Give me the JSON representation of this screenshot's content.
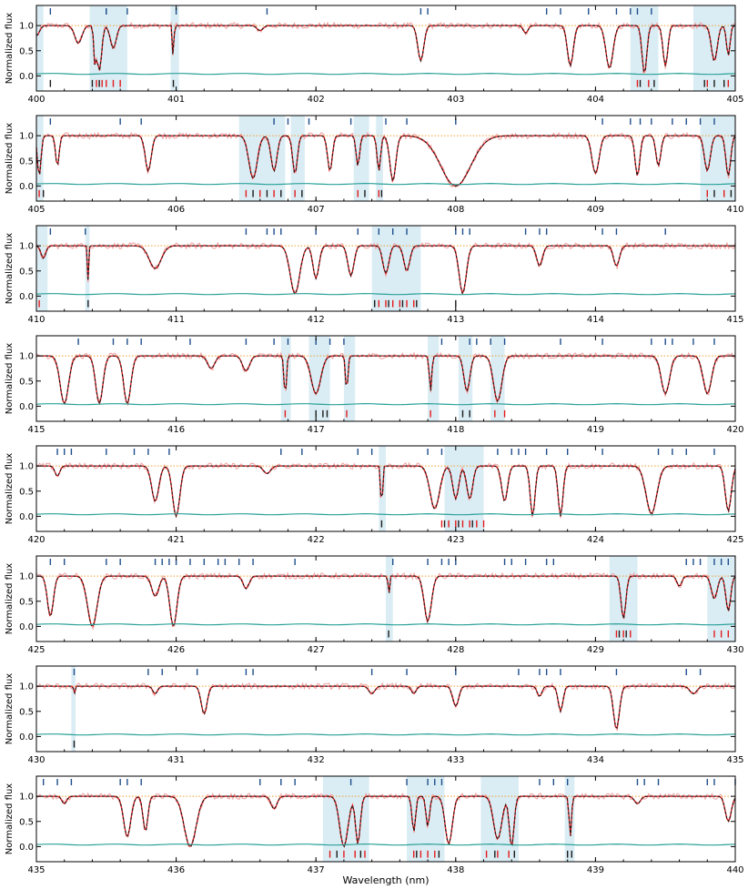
{
  "figure": {
    "xlabel": "Wavelength (nm)",
    "ylabel": "Normalized flux"
  },
  "colors": {
    "observed": "#f0a0a0",
    "model_red": "#e31a1c",
    "model_black": "#1a1a1a",
    "continuum": "#f0a030",
    "error": "#2aa198",
    "tick_blue": "#1f4e8c",
    "shade": "#add8e6"
  },
  "chart_data": [
    {
      "type": "line",
      "panel": 1,
      "xlim": [
        400,
        405
      ],
      "ylim": [
        -0.3,
        1.4
      ],
      "xticks": [
        "400",
        "401",
        "402",
        "403",
        "404",
        "405"
      ],
      "yticks": [
        "0.0",
        "0.5",
        "1.0"
      ],
      "shaded": [
        [
          400.0,
          400.05
        ],
        [
          400.38,
          400.65
        ],
        [
          400.96,
          401.02
        ],
        [
          404.25,
          404.45
        ],
        [
          404.7,
          405.0
        ]
      ],
      "lines": [
        [
          400.0,
          0.8,
          0.05
        ],
        [
          400.3,
          0.65,
          0.06
        ],
        [
          400.42,
          0.2,
          0.02
        ],
        [
          400.45,
          0.1,
          0.04
        ],
        [
          400.55,
          0.55,
          0.05
        ],
        [
          400.98,
          0.15,
          0.01
        ],
        [
          401.6,
          0.9,
          0.05
        ],
        [
          402.75,
          0.3,
          0.05
        ],
        [
          403.5,
          0.85,
          0.04
        ],
        [
          403.82,
          0.2,
          0.05
        ],
        [
          404.1,
          0.15,
          0.06
        ],
        [
          404.35,
          0.05,
          0.04
        ],
        [
          404.5,
          0.2,
          0.04
        ],
        [
          404.85,
          0.3,
          0.05
        ],
        [
          404.95,
          0.4,
          0.03
        ]
      ],
      "black_ticks_top": [
        400.1,
        400.5,
        400.5,
        400.65,
        401.0,
        401.65,
        402.75,
        402.8,
        403.65,
        403.75,
        403.95,
        404.15,
        404.25,
        404.3,
        404.4
      ],
      "red_ticks": [
        400.43,
        400.47,
        400.5,
        400.55,
        400.6,
        404.3,
        404.38,
        404.8,
        404.95
      ],
      "black_ticks": [
        400.1,
        400.4,
        400.45,
        400.98,
        404.32,
        404.42,
        404.78,
        404.85,
        404.92
      ]
    },
    {
      "type": "line",
      "panel": 2,
      "xlim": [
        405,
        410
      ],
      "ylim": [
        -0.3,
        1.4
      ],
      "xticks": [
        "405",
        "406",
        "407",
        "408",
        "409",
        "410"
      ],
      "yticks": [
        "0.0",
        "0.5",
        "1.0"
      ],
      "shaded": [
        [
          405.0,
          405.05
        ],
        [
          406.45,
          406.78
        ],
        [
          406.82,
          406.92
        ],
        [
          407.27,
          407.38
        ],
        [
          407.43,
          407.48
        ],
        [
          409.75,
          410.0
        ]
      ],
      "lines": [
        [
          405.02,
          0.2,
          0.03
        ],
        [
          405.15,
          0.4,
          0.03
        ],
        [
          405.8,
          0.3,
          0.05
        ],
        [
          406.55,
          0.15,
          0.07
        ],
        [
          406.7,
          0.3,
          0.05
        ],
        [
          406.85,
          0.25,
          0.04
        ],
        [
          407.1,
          0.3,
          0.04
        ],
        [
          407.3,
          0.4,
          0.03
        ],
        [
          407.45,
          0.3,
          0.03
        ],
        [
          407.55,
          0.1,
          0.05
        ],
        [
          408.0,
          0.0,
          0.25
        ],
        [
          409.0,
          0.25,
          0.06
        ],
        [
          409.3,
          0.2,
          0.04
        ],
        [
          409.45,
          0.4,
          0.04
        ],
        [
          409.8,
          0.3,
          0.05
        ],
        [
          409.95,
          0.2,
          0.04
        ]
      ],
      "black_ticks_top": [
        405.1,
        405.6,
        405.75,
        406.7,
        406.8,
        406.95,
        407.25,
        407.5,
        407.65,
        408.0,
        409.05,
        409.55,
        409.25,
        409.32,
        409.4,
        409.65,
        409.75,
        409.85
      ],
      "red_ticks": [
        405.02,
        406.5,
        406.6,
        406.7,
        406.85,
        407.3,
        407.45,
        409.8,
        409.92
      ],
      "black_ticks": [
        405.05,
        406.55,
        406.65,
        406.75,
        406.9,
        407.35,
        407.47,
        409.85,
        409.97
      ]
    },
    {
      "type": "line",
      "panel": 3,
      "xlim": [
        410,
        415
      ],
      "ylim": [
        -0.3,
        1.4
      ],
      "xticks": [
        "410",
        "411",
        "412",
        "413",
        "414",
        "415"
      ],
      "yticks": [
        "0.0",
        "0.5",
        "1.0"
      ],
      "shaded": [
        [
          410.0,
          410.08
        ],
        [
          410.35,
          410.38
        ],
        [
          412.4,
          412.75
        ]
      ],
      "lines": [
        [
          410.05,
          0.75,
          0.04
        ],
        [
          410.37,
          0.3,
          0.01
        ],
        [
          410.85,
          0.55,
          0.1
        ],
        [
          411.85,
          0.05,
          0.08
        ],
        [
          412.0,
          0.35,
          0.05
        ],
        [
          412.25,
          0.4,
          0.05
        ],
        [
          412.5,
          0.45,
          0.05
        ],
        [
          412.65,
          0.5,
          0.05
        ],
        [
          413.05,
          0.05,
          0.06
        ],
        [
          413.6,
          0.6,
          0.05
        ],
        [
          414.15,
          0.6,
          0.05
        ]
      ],
      "black_ticks_top": [
        410.1,
        410.35,
        411.5,
        411.65,
        411.7,
        411.75,
        412.0,
        412.3,
        412.45,
        412.55,
        412.65,
        413.0,
        413.05,
        413.1,
        413.5,
        413.6,
        413.65,
        414.05,
        414.15,
        414.5
      ],
      "red_ticks": [
        410.02,
        412.45,
        412.5,
        412.55,
        412.6,
        412.65,
        412.7
      ],
      "black_ticks": [
        410.37,
        412.42,
        412.52,
        412.62,
        412.72,
        413.0
      ]
    },
    {
      "type": "line",
      "panel": 4,
      "xlim": [
        415,
        420
      ],
      "ylim": [
        -0.3,
        1.4
      ],
      "xticks": [
        "415",
        "416",
        "417",
        "418",
        "419",
        "420"
      ],
      "yticks": [
        "0.0",
        "0.5",
        "1.0"
      ],
      "shaded": [
        [
          416.75,
          416.82
        ],
        [
          416.95,
          417.1
        ],
        [
          417.2,
          417.28
        ],
        [
          417.8,
          417.88
        ],
        [
          418.02,
          418.12
        ],
        [
          418.25,
          418.35
        ]
      ],
      "lines": [
        [
          415.2,
          0.05,
          0.07
        ],
        [
          415.45,
          0.05,
          0.06
        ],
        [
          415.65,
          0.05,
          0.06
        ],
        [
          416.25,
          0.75,
          0.06
        ],
        [
          416.5,
          0.7,
          0.06
        ],
        [
          416.78,
          0.2,
          0.02
        ],
        [
          417.0,
          0.25,
          0.08
        ],
        [
          417.22,
          0.3,
          0.02
        ],
        [
          417.82,
          0.3,
          0.02
        ],
        [
          418.08,
          0.3,
          0.05
        ],
        [
          418.3,
          0.1,
          0.07
        ],
        [
          419.5,
          0.25,
          0.07
        ],
        [
          419.8,
          0.25,
          0.07
        ]
      ],
      "black_ticks_top": [
        415.3,
        415.55,
        415.65,
        415.75,
        416.1,
        416.5,
        416.7,
        416.8,
        417.0,
        417.1,
        417.2,
        417.9,
        418.1,
        418.15,
        418.25,
        418.35,
        418.75,
        419.05,
        419.4,
        419.5,
        419.55,
        419.7,
        419.85
      ],
      "red_ticks": [
        416.78,
        417.22,
        417.82,
        418.28,
        418.35
      ],
      "black_ticks": [
        417.0,
        417.05,
        417.08,
        418.05,
        418.1
      ]
    },
    {
      "type": "line",
      "panel": 5,
      "xlim": [
        420,
        425
      ],
      "ylim": [
        -0.3,
        1.4
      ],
      "xticks": [
        "420",
        "421",
        "422",
        "423",
        "424",
        "425"
      ],
      "yticks": [
        "0.0",
        "0.5",
        "1.0"
      ],
      "shaded": [
        [
          422.45,
          422.5
        ],
        [
          422.92,
          423.2
        ]
      ],
      "lines": [
        [
          420.15,
          0.8,
          0.04
        ],
        [
          420.85,
          0.3,
          0.06
        ],
        [
          421.0,
          0.0,
          0.06
        ],
        [
          421.65,
          0.85,
          0.06
        ],
        [
          422.47,
          0.1,
          0.015
        ],
        [
          422.85,
          0.15,
          0.08
        ],
        [
          423.0,
          0.35,
          0.05
        ],
        [
          423.1,
          0.35,
          0.05
        ],
        [
          423.35,
          0.3,
          0.05
        ],
        [
          423.55,
          0.0,
          0.04
        ],
        [
          423.75,
          0.0,
          0.04
        ],
        [
          424.4,
          0.05,
          0.09
        ],
        [
          424.95,
          0.1,
          0.05
        ]
      ],
      "black_ticks_top": [
        420.15,
        420.2,
        420.25,
        420.5,
        420.7,
        420.8,
        420.95,
        421.75,
        421.9,
        422.3,
        422.4,
        422.8,
        422.9,
        423.3,
        423.4,
        423.45,
        423.5,
        423.65,
        423.8,
        424.05,
        424.45,
        424.55,
        424.65,
        424.85
      ],
      "red_ticks": [
        422.9,
        422.95,
        423.0,
        423.05,
        423.1,
        423.15,
        423.2
      ],
      "black_ticks": [
        422.47,
        422.92,
        423.02,
        423.12
      ]
    },
    {
      "type": "line",
      "panel": 6,
      "xlim": [
        425,
        430
      ],
      "ylim": [
        -0.3,
        1.4
      ],
      "xticks": [
        "425",
        "426",
        "427",
        "428",
        "429",
        "430"
      ],
      "yticks": [
        "0.0",
        "0.5",
        "1.0"
      ],
      "shaded": [
        [
          427.5,
          427.55
        ],
        [
          429.1,
          429.3
        ],
        [
          429.8,
          430.0
        ]
      ],
      "lines": [
        [
          425.1,
          0.2,
          0.05
        ],
        [
          425.4,
          0.0,
          0.08
        ],
        [
          425.85,
          0.6,
          0.06
        ],
        [
          425.98,
          0.0,
          0.06
        ],
        [
          426.5,
          0.75,
          0.05
        ],
        [
          427.52,
          0.5,
          0.01
        ],
        [
          427.8,
          0.1,
          0.06
        ],
        [
          429.2,
          0.15,
          0.04
        ],
        [
          429.6,
          0.8,
          0.04
        ],
        [
          429.85,
          0.55,
          0.05
        ],
        [
          429.95,
          0.3,
          0.04
        ]
      ],
      "black_ticks_top": [
        425.1,
        425.2,
        425.5,
        425.6,
        425.85,
        425.9,
        425.95,
        426.0,
        426.1,
        426.2,
        426.3,
        426.35,
        426.45,
        426.55,
        426.85,
        427.55,
        427.8,
        427.9,
        427.95,
        428.0,
        428.35,
        428.4,
        428.5,
        428.65,
        428.7,
        429.65,
        429.7,
        429.75,
        429.85,
        429.9,
        429.95
      ],
      "red_ticks": [
        429.15,
        429.2,
        429.25,
        429.85,
        429.9,
        429.95
      ],
      "black_ticks": [
        427.52,
        429.17,
        429.22
      ]
    },
    {
      "type": "line",
      "panel": 7,
      "xlim": [
        430,
        435
      ],
      "ylim": [
        -0.3,
        1.4
      ],
      "xticks": [
        "430",
        "431",
        "432",
        "433",
        "434",
        "435"
      ],
      "yticks": [
        "0.0",
        "0.5",
        "1.0"
      ],
      "shaded": [
        [
          430.25,
          430.28
        ]
      ],
      "lines": [
        [
          430.27,
          0.8,
          0.01
        ],
        [
          430.85,
          0.85,
          0.04
        ],
        [
          431.2,
          0.45,
          0.05
        ],
        [
          432.4,
          0.85,
          0.05
        ],
        [
          432.7,
          0.85,
          0.04
        ],
        [
          433.0,
          0.6,
          0.05
        ],
        [
          433.6,
          0.8,
          0.04
        ],
        [
          433.75,
          0.5,
          0.04
        ],
        [
          434.15,
          0.15,
          0.05
        ],
        [
          434.7,
          0.85,
          0.06
        ]
      ],
      "black_ticks_top": [
        430.27,
        430.8,
        430.9,
        431.15,
        431.5,
        431.55,
        432.4,
        432.65,
        433.0,
        433.45,
        433.6,
        433.65,
        433.75,
        434.15,
        434.65,
        434.75
      ],
      "red_ticks": [],
      "black_ticks": [
        430.27
      ]
    },
    {
      "type": "line",
      "panel": 8,
      "xlim": [
        435,
        440
      ],
      "ylim": [
        -0.3,
        1.4
      ],
      "xticks": [
        "435",
        "436",
        "437",
        "438",
        "439",
        "440"
      ],
      "yticks": [
        "0.0",
        "0.5",
        "1.0"
      ],
      "shaded": [
        [
          437.05,
          437.38
        ],
        [
          437.65,
          437.92
        ],
        [
          438.18,
          438.45
        ],
        [
          438.78,
          438.85
        ]
      ],
      "lines": [
        [
          435.2,
          0.85,
          0.04
        ],
        [
          435.65,
          0.2,
          0.06
        ],
        [
          435.78,
          0.3,
          0.04
        ],
        [
          436.1,
          0.0,
          0.1
        ],
        [
          436.7,
          0.75,
          0.05
        ],
        [
          437.2,
          0.0,
          0.07
        ],
        [
          437.3,
          0.05,
          0.04
        ],
        [
          437.7,
          0.3,
          0.03
        ],
        [
          437.8,
          0.4,
          0.03
        ],
        [
          437.95,
          0.05,
          0.06
        ],
        [
          438.3,
          0.15,
          0.07
        ],
        [
          438.4,
          0.0,
          0.04
        ],
        [
          438.82,
          0.2,
          0.02
        ],
        [
          439.3,
          0.85,
          0.05
        ],
        [
          439.95,
          0.5,
          0.05
        ]
      ],
      "black_ticks_top": [
        435.05,
        435.15,
        435.25,
        435.6,
        435.65,
        435.75,
        436.6,
        436.75,
        436.85,
        437.25,
        437.65,
        437.8,
        437.85,
        437.9,
        438.6,
        438.7,
        438.8,
        439.3,
        439.35,
        439.45,
        439.8,
        439.85,
        440.0
      ],
      "red_ticks": [
        437.1,
        437.2,
        437.28,
        437.35,
        437.7,
        437.75,
        437.8,
        437.85,
        438.22,
        438.3,
        438.38
      ],
      "black_ticks": [
        437.15,
        437.32,
        437.72,
        437.88,
        438.28,
        438.42,
        438.8,
        438.83
      ]
    }
  ]
}
